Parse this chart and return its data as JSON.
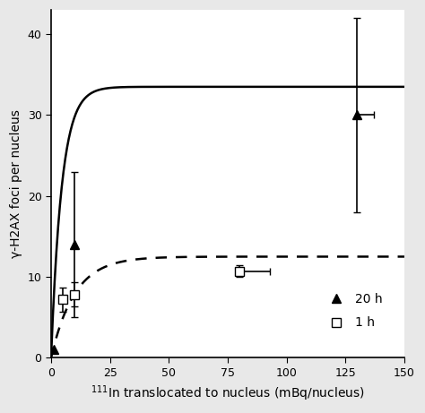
{
  "xlabel": "$^{111}$In translocated to nucleus (mBq/nucleus)",
  "ylabel": "γ-H2AX foci per nucleus",
  "xlim": [
    0,
    150
  ],
  "ylim": [
    0,
    43
  ],
  "xticks": [
    0,
    25,
    50,
    75,
    100,
    125,
    150
  ],
  "yticks": [
    0,
    10,
    20,
    30,
    40
  ],
  "solid_data": {
    "x": [
      1,
      10,
      130
    ],
    "y": [
      1,
      14,
      30
    ],
    "xerr_lo": [
      0,
      0,
      0
    ],
    "xerr_hi": [
      0,
      0,
      7
    ],
    "yerr_lo": [
      0,
      9,
      12
    ],
    "yerr_hi": [
      0,
      9,
      12
    ],
    "marker": "^",
    "label": "20 h"
  },
  "dashed_data": {
    "x": [
      5,
      10,
      80
    ],
    "y": [
      7.2,
      7.8,
      10.7
    ],
    "xerr_lo": [
      0,
      0,
      0
    ],
    "xerr_hi": [
      0,
      0,
      13
    ],
    "yerr_lo": [
      1.5,
      1.5,
      0.7
    ],
    "yerr_hi": [
      1.5,
      1.5,
      0.7
    ],
    "marker": "s",
    "label": "1 h"
  },
  "solid_curve_params": {
    "a": 33.5,
    "b": 0.22
  },
  "dashed_curve_params": {
    "a": 12.5,
    "b": 0.1
  },
  "background_color": "#e8e8e8",
  "plot_bg_color": "#ffffff",
  "markersize": 7,
  "linewidth": 1.8,
  "capsize": 3
}
